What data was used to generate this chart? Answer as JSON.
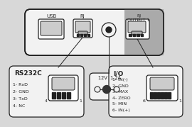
{
  "bg_color": "#d8d8d8",
  "box_fill": "#f2f2f2",
  "white": "#ffffff",
  "gray_light": "#cccccc",
  "gray_mid": "#aaaaaa",
  "line_color": "#222222",
  "label_usb": "USB",
  "label_rj": "RJ",
  "label_rj_output": "RJ\nOUTPUT 1",
  "label_power": "12V  1.2A",
  "label_rs232c": "RS232C",
  "label_io": "I/O",
  "rs232c_pins": [
    "1- RxD",
    "2- GND",
    "3- TxD",
    "4- NC"
  ],
  "io_pins": [
    "1- IN(-)",
    "2- GND",
    "3- MAX",
    "4- ZERO",
    "5- MIN",
    "6- IN(+)"
  ]
}
